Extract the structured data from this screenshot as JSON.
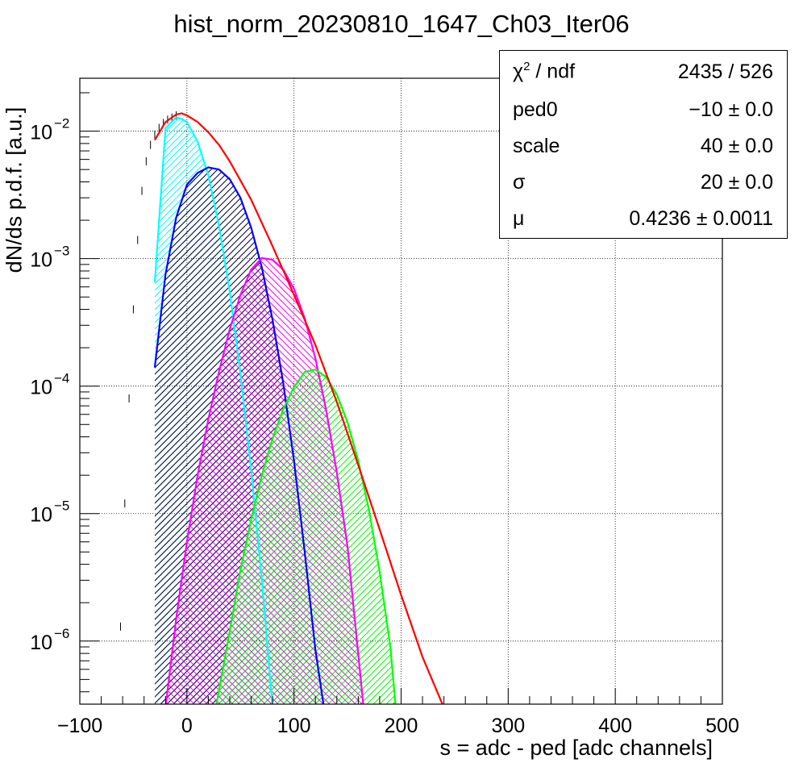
{
  "chart_data": {
    "type": "line",
    "title": "hist_norm_20230810_1647_Ch03_Iter06",
    "xlabel": "s = adc - ped [adc channels]",
    "ylabel": "dN/ds p.d.f. [a.u.]",
    "xlim": [
      -100,
      500
    ],
    "ylim": [
      3.2e-07,
      0.026
    ],
    "yscale": "log",
    "grid": true,
    "x_ticks": [
      "−100",
      "0",
      "100",
      "200",
      "300",
      "400",
      "500"
    ],
    "x_tick_values": [
      -100,
      0,
      100,
      200,
      300,
      400,
      500
    ],
    "y_ticks": [
      {
        "value": 1e-06,
        "base": "10",
        "exp": "−6"
      },
      {
        "value": 1e-05,
        "base": "10",
        "exp": "−5"
      },
      {
        "value": 0.0001,
        "base": "10",
        "exp": "−4"
      },
      {
        "value": 0.001,
        "base": "10",
        "exp": "−3"
      },
      {
        "value": 0.01,
        "base": "10",
        "exp": "−2"
      }
    ],
    "series": [
      {
        "color": "#ff0000",
        "x": [
          -30,
          -20,
          -10,
          -5,
          0,
          10,
          20,
          30,
          40,
          60,
          80,
          100,
          120,
          140,
          160,
          180,
          200,
          220,
          240
        ],
        "values": [
          0.0085,
          0.0118,
          0.0135,
          0.0138,
          0.0133,
          0.0118,
          0.0098,
          0.0078,
          0.0058,
          0.0029,
          0.00125,
          0.00052,
          0.00021,
          7.5e-05,
          2.4e-05,
          7.5e-06,
          2.3e-06,
          7.5e-07,
          3e-07
        ]
      },
      {
        "color": "#00ffff",
        "x": [
          -30,
          -20,
          -10,
          -5,
          0,
          10,
          20,
          30,
          40,
          50,
          60,
          70,
          80
        ],
        "values": [
          0.00065,
          0.0105,
          0.0128,
          0.0125,
          0.0118,
          0.0083,
          0.0045,
          0.0018,
          0.00055,
          0.000125,
          2.2e-05,
          3e-06,
          3e-07
        ]
      },
      {
        "color": "#0000ff",
        "x": [
          -30,
          -20,
          -10,
          0,
          10,
          20,
          30,
          40,
          50,
          60,
          70,
          80,
          90,
          100,
          110,
          120,
          128
        ],
        "values": [
          0.00014,
          0.00075,
          0.0021,
          0.0038,
          0.0047,
          0.0052,
          0.005,
          0.0042,
          0.003,
          0.00175,
          0.00085,
          0.00033,
          0.000105,
          2.6e-05,
          5e-06,
          8.5e-07,
          3e-07
        ]
      },
      {
        "color": "#ff00ff",
        "x": [
          -20,
          -10,
          0,
          10,
          20,
          30,
          40,
          50,
          60,
          70,
          80,
          90,
          100,
          110,
          120,
          130,
          140,
          150,
          165
        ],
        "values": [
          3e-07,
          1.5e-06,
          6e-06,
          2e-05,
          5.5e-05,
          0.00013,
          0.00028,
          0.00052,
          0.00082,
          0.00101,
          0.00098,
          0.00082,
          0.00058,
          0.00034,
          0.000165,
          6.5e-05,
          2.1e-05,
          5.5e-06,
          3e-07
        ]
      },
      {
        "color": "#00ff00",
        "x": [
          27,
          40,
          50,
          60,
          70,
          80,
          90,
          100,
          110,
          120,
          130,
          140,
          150,
          160,
          170,
          180,
          190,
          195
        ],
        "values": [
          3e-07,
          1.2e-06,
          3.6e-06,
          9e-06,
          2e-05,
          3.9e-05,
          6.6e-05,
          9.8e-05,
          0.000129,
          0.000135,
          0.000118,
          8.6e-05,
          5.2e-05,
          2.6e-05,
          1.07e-05,
          3.5e-06,
          9e-07,
          3e-07
        ]
      }
    ],
    "data_points": {
      "color": "#000000",
      "x": [
        -62,
        -58,
        -54,
        -50,
        -46,
        -42,
        -38,
        -34,
        -30,
        -26,
        -22,
        -18,
        -14,
        -10
      ],
      "values": [
        1.3e-06,
        1.2e-05,
        8e-05,
        0.0004,
        0.0014,
        0.0034,
        0.0058,
        0.0078,
        0.0094,
        0.0106,
        0.0116,
        0.0123,
        0.0128,
        0.0133
      ]
    }
  },
  "stats_box": {
    "rows": [
      {
        "label": "χ",
        "label_sup": "2",
        "label_tail": " / ndf",
        "value": "2435 / 526"
      },
      {
        "label": "ped0",
        "label_sup": "",
        "label_tail": "",
        "value": "−10 ± 0.0"
      },
      {
        "label": "scale",
        "label_sup": "",
        "label_tail": "",
        "value": "40 ± 0.0"
      },
      {
        "label": "σ",
        "label_sup": "",
        "label_tail": "",
        "value": "20 ± 0.0"
      },
      {
        "label": "μ",
        "label_sup": "",
        "label_tail": "",
        "value": "0.4236 ± 0.0011"
      }
    ]
  }
}
